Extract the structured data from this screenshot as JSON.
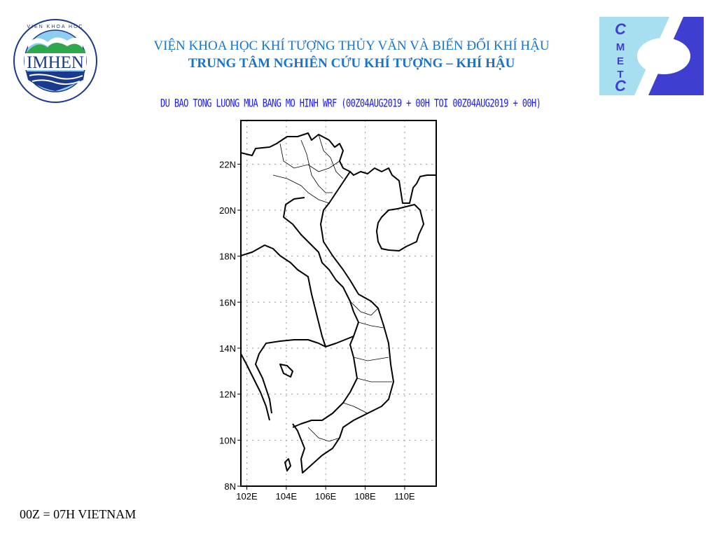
{
  "header": {
    "title_line1": "VIỆN KHOA HỌC KHÍ TƯỢNG THỦY VĂN VÀ BIẾN ĐỔI KHÍ HẬU",
    "title_line2": "TRUNG TÂM NGHIÊN CỨU KHÍ TƯỢNG – KHÍ HẬU"
  },
  "logos": {
    "left": {
      "text": "IMHEN",
      "ring_top": "VIEN KHOA HOC",
      "ring_bottom": "KHÍ TƯỢNG THỦY VĂN VÀ BIẾN ĐỔI KHÍ HẬU"
    },
    "right": {
      "letters": [
        "C",
        "M",
        "E",
        "T",
        "C"
      ],
      "colors": {
        "light": "#a8dff0",
        "dark": "#3e3ed0"
      }
    }
  },
  "map": {
    "subtitle": "DU BAO TONG LUONG MUA BANG MO HINH WRF (00Z04AUG2019 + 00H TOI 00Z04AUG2019 + 00H)",
    "lon_ticks": [
      "102E",
      "104E",
      "106E",
      "108E",
      "110E"
    ],
    "lat_ticks": [
      "22N",
      "20N",
      "18N",
      "16N",
      "14N",
      "12N",
      "10N",
      "8N"
    ],
    "lon_range": [
      101.7,
      111.6
    ],
    "lat_range": [
      8.0,
      23.9
    ],
    "grid": "dotted, every 2 degrees"
  },
  "footer": {
    "note": "00Z = 07H VIETNAM"
  }
}
